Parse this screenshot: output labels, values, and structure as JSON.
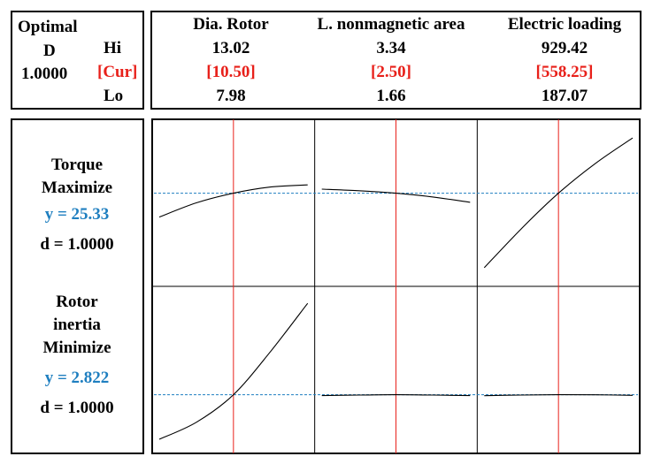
{
  "optimal_box": {
    "optimal_label": "Optimal",
    "d_label": "D",
    "d_value": "1.0000",
    "hi_label": "Hi",
    "cur_label": "[Cur]",
    "lo_label": "Lo"
  },
  "factors": [
    {
      "name": "Dia. Rotor",
      "hi": "13.02",
      "cur": "[10.50]",
      "lo": "7.98"
    },
    {
      "name": "L. nonmagnetic area",
      "hi": "3.34",
      "cur": "[2.50]",
      "lo": "1.66"
    },
    {
      "name": "Electric loading",
      "hi": "929.42",
      "cur": "[558.25]",
      "lo": "187.07"
    }
  ],
  "responses": [
    {
      "name_lines": [
        "Torque",
        "Maximize"
      ],
      "y_text": "y = 25.33",
      "d_text": "d = 1.0000"
    },
    {
      "name_lines": [
        "Rotor",
        "inertia",
        "Minimize"
      ],
      "y_text": "y = 2.822",
      "d_text": "d = 1.0000"
    }
  ],
  "colors": {
    "current_setting_line": "#e8201a",
    "optimal_response_line": "#1f7fc0",
    "curve": "#000000"
  },
  "chart_data": {
    "type": "line",
    "factors": [
      {
        "name": "Dia. Rotor",
        "lo": 7.98,
        "cur": 10.5,
        "hi": 13.02
      },
      {
        "name": "L. nonmagnetic area",
        "lo": 1.66,
        "cur": 2.5,
        "hi": 3.34
      },
      {
        "name": "Electric loading",
        "lo": 187.07,
        "cur": 558.25,
        "hi": 929.42
      }
    ],
    "responses": [
      {
        "name": "Torque",
        "goal": "Maximize",
        "y": 25.33,
        "d": 1.0,
        "curves": [
          {
            "x": [
              7.98,
              9.24,
              10.5,
              11.76,
              13.02
            ],
            "y": [
              20.8,
              23.5,
              25.33,
              26.5,
              26.9
            ]
          },
          {
            "x": [
              1.66,
              2.08,
              2.5,
              2.92,
              3.34
            ],
            "y": [
              26.1,
              25.8,
              25.33,
              24.6,
              23.6
            ]
          },
          {
            "x": [
              187.07,
              372.66,
              558.25,
              743.84,
              929.42
            ],
            "y": [
              11.2,
              18.6,
              25.33,
              31.0,
              35.8
            ]
          }
        ]
      },
      {
        "name": "Rotor inertia",
        "goal": "Minimize",
        "y": 2.822,
        "d": 1.0,
        "curves": [
          {
            "x": [
              7.98,
              9.24,
              10.5,
              11.76,
              13.02
            ],
            "y": [
              1.25,
              1.85,
              2.822,
              4.35,
              6.05
            ]
          },
          {
            "x": [
              1.66,
              2.08,
              2.5,
              2.92,
              3.34
            ],
            "y": [
              2.792,
              2.81,
              2.822,
              2.81,
              2.792
            ]
          },
          {
            "x": [
              187.07,
              372.66,
              558.25,
              743.84,
              929.42
            ],
            "y": [
              2.79,
              2.81,
              2.822,
              2.82,
              2.8
            ]
          }
        ]
      }
    ],
    "grid": false
  }
}
